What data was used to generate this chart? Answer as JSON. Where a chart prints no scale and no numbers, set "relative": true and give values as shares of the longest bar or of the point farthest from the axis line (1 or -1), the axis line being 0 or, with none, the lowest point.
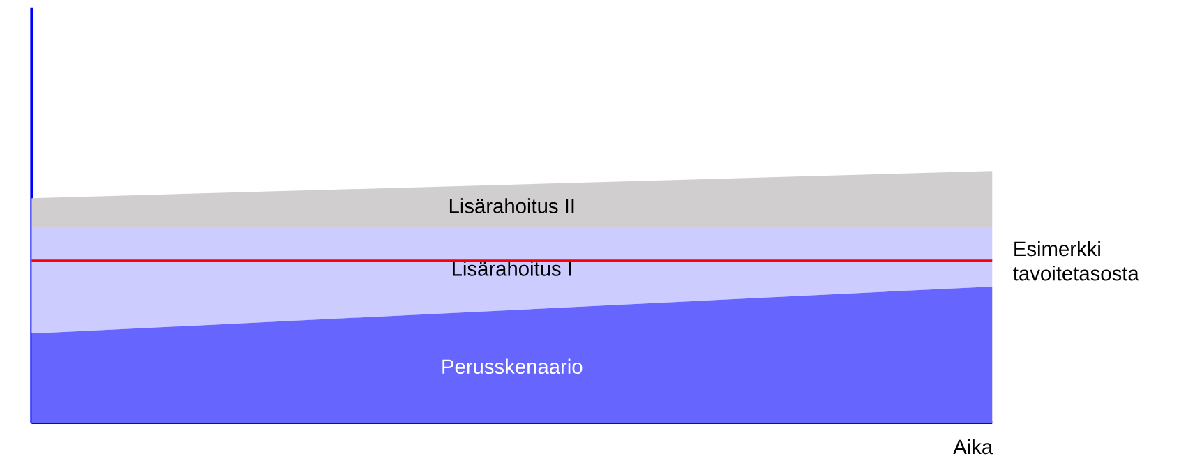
{
  "chart_data": {
    "type": "area",
    "stacked": true,
    "relative": true,
    "xlabel": "Aika",
    "categories": [
      null,
      null
    ],
    "series": [
      {
        "name": "Perusskenaario",
        "color": "#6666ff",
        "values": [
          0.354,
          0.541
        ]
      },
      {
        "name": "Lisärahoitus I",
        "color": "#ccccff",
        "values": [
          0.424,
          0.237
        ]
      },
      {
        "name": "Lisärahoitus II",
        "color": "#d0cece",
        "values": [
          0.114,
          0.222
        ]
      }
    ],
    "ref_lines": [
      {
        "axis": "y",
        "value": 0.643,
        "label": "Esimerkki tavoitetasosta",
        "color": "#ff0000"
      }
    ]
  }
}
